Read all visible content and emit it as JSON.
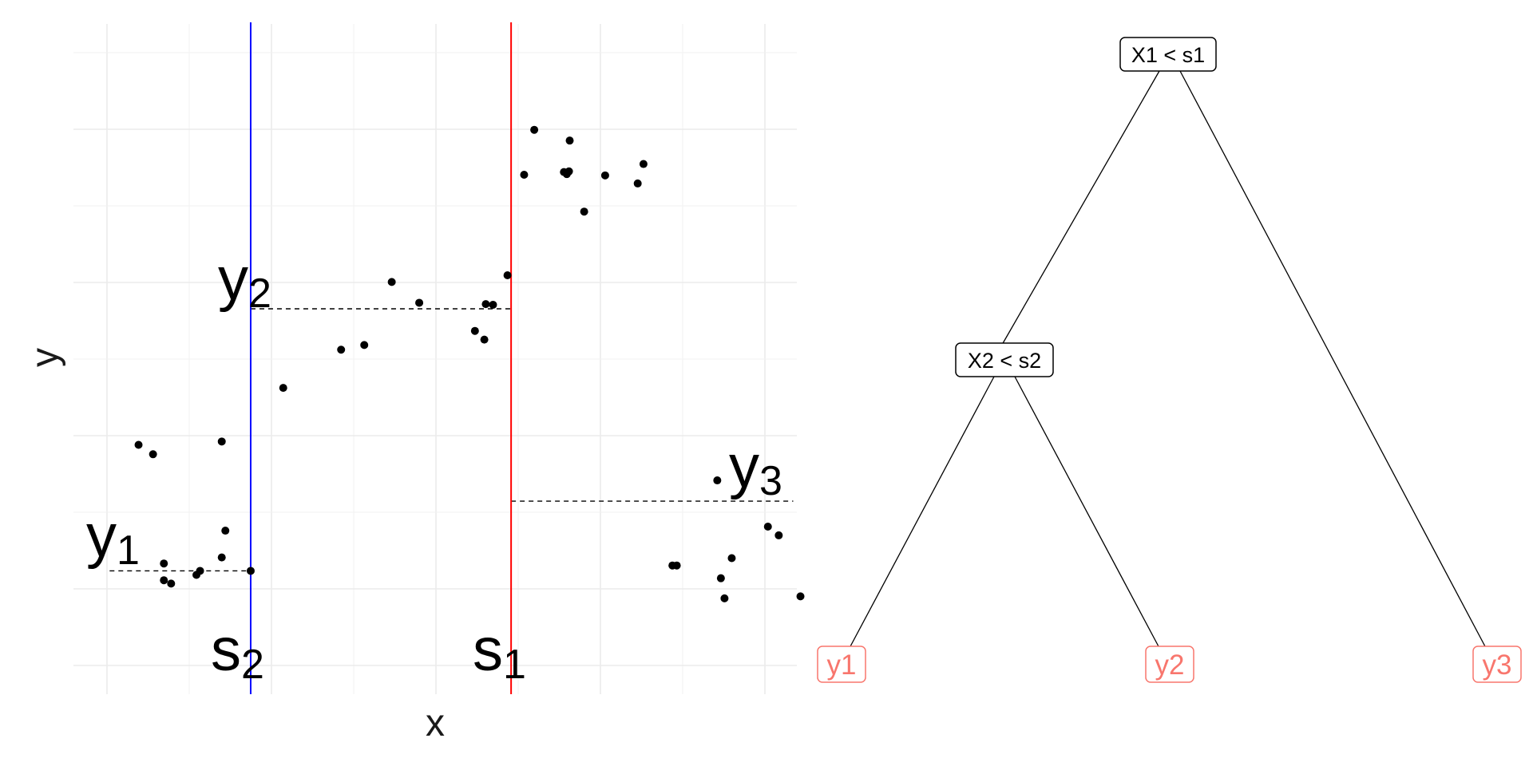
{
  "scatter_panel": {
    "xlabel": "x",
    "ylabel": "y",
    "xlim": [
      0,
      10
    ],
    "ylim": [
      0,
      10
    ],
    "grid": true,
    "points": [
      [
        0.9,
        3.72
      ],
      [
        1.1,
        3.58
      ],
      [
        1.35,
        1.65
      ],
      [
        2.05,
        3.77
      ],
      [
        1.25,
        1.95
      ],
      [
        1.25,
        1.7
      ],
      [
        1.7,
        1.78
      ],
      [
        1.75,
        1.84
      ],
      [
        2.1,
        2.44
      ],
      [
        2.45,
        1.84
      ],
      [
        2.05,
        2.04
      ],
      [
        2.9,
        4.57
      ],
      [
        3.7,
        5.14
      ],
      [
        4.02,
        5.21
      ],
      [
        4.4,
        6.15
      ],
      [
        4.78,
        5.84
      ],
      [
        5.55,
        5.42
      ],
      [
        5.68,
        5.29
      ],
      [
        5.7,
        5.82
      ],
      [
        5.8,
        5.81
      ],
      [
        6.0,
        6.25
      ],
      [
        6.23,
        7.75
      ],
      [
        6.37,
        8.42
      ],
      [
        6.78,
        7.79
      ],
      [
        6.82,
        7.76
      ],
      [
        6.85,
        7.8
      ],
      [
        6.86,
        8.26
      ],
      [
        7.06,
        7.2
      ],
      [
        7.35,
        7.74
      ],
      [
        7.8,
        7.62
      ],
      [
        7.88,
        7.91
      ],
      [
        8.28,
        1.92
      ],
      [
        8.34,
        1.92
      ],
      [
        8.9,
        3.19
      ],
      [
        8.95,
        1.73
      ],
      [
        9.0,
        1.43
      ],
      [
        9.1,
        2.03
      ],
      [
        9.6,
        2.5
      ],
      [
        9.75,
        2.37
      ],
      [
        10.05,
        1.46
      ]
    ],
    "split_s2": 2.45,
    "split_s1": 6.05,
    "means": [
      {
        "y": 1.84,
        "from": 0.5,
        "to": 2.45
      },
      {
        "y": 5.75,
        "from": 2.45,
        "to": 6.05
      },
      {
        "y": 2.88,
        "from": 6.05,
        "to": 9.95
      }
    ],
    "split_lines": [
      {
        "at": "s2",
        "color": "#0000ff"
      },
      {
        "at": "s1",
        "color": "#ff0000"
      }
    ],
    "labels": {
      "y1": {
        "base": "y",
        "sub": "1"
      },
      "y2": {
        "base": "y",
        "sub": "2"
      },
      "y3": {
        "base": "y",
        "sub": "3"
      },
      "s1": {
        "base": "s",
        "sub": "1"
      },
      "s2": {
        "base": "s",
        "sub": "2"
      }
    }
  },
  "tree_panel": {
    "root": "X1 < s1",
    "inner": "X2 < s2",
    "leaves": [
      "y1",
      "y2",
      "y3"
    ],
    "leaf_color": "#f8766d",
    "node_border": "#000000"
  }
}
